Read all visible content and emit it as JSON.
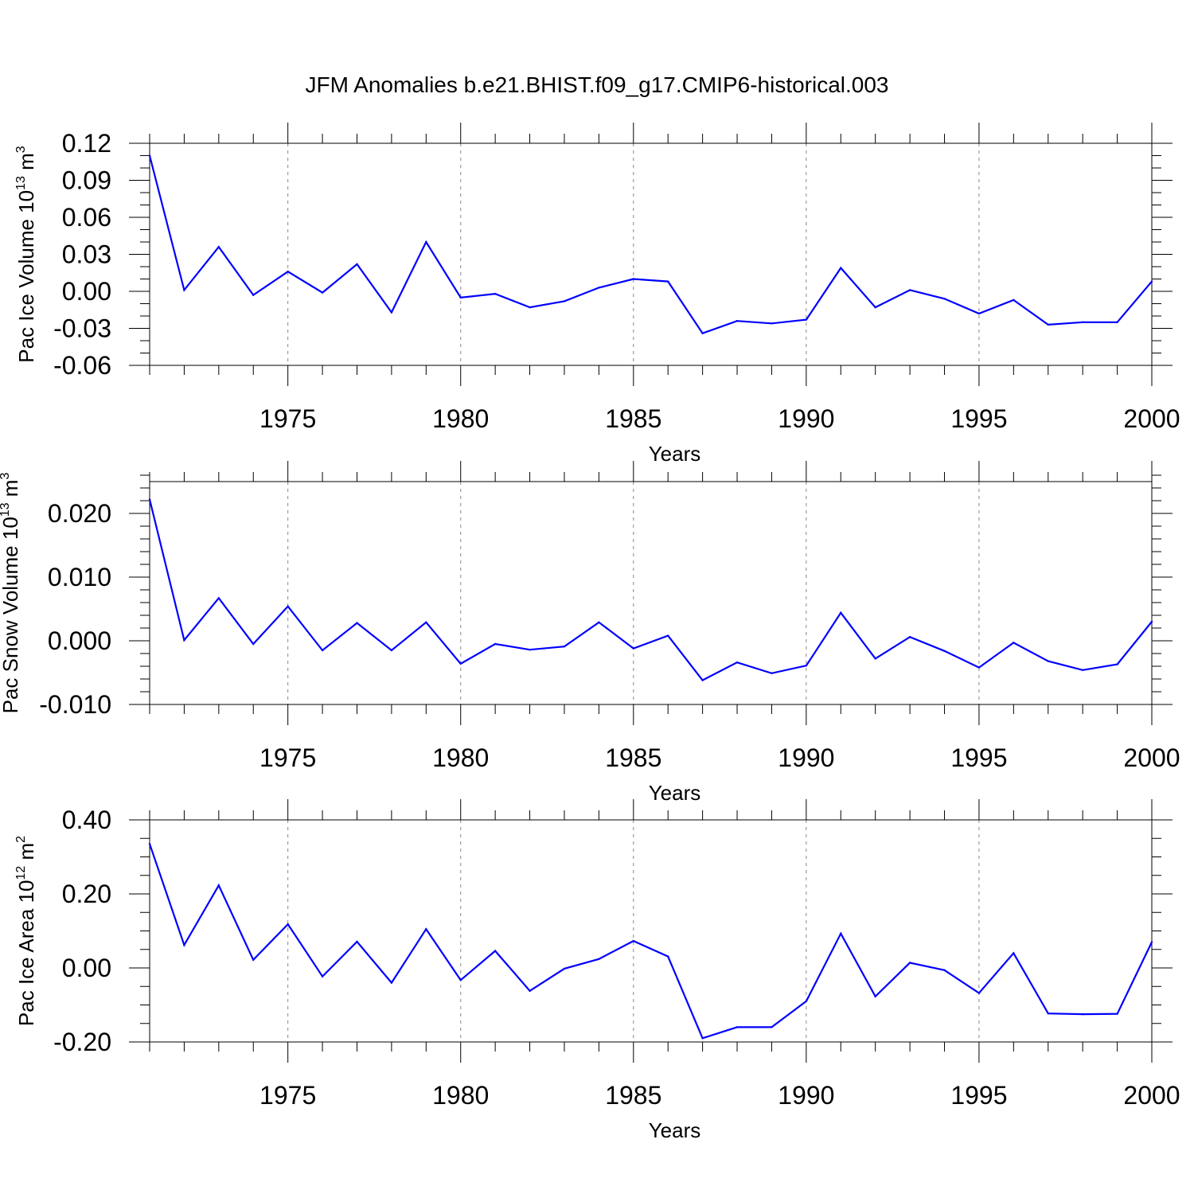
{
  "title": "JFM Anomalies b.e21.BHIST.f09_g17.CMIP6-historical.003",
  "series_color": "#0000ff",
  "chart_data": [
    {
      "type": "line",
      "ylabel_main": "Pac Ice Volume 10",
      "ylabel_exp": "13",
      "ylabel_unit": " m",
      "ylabel_unit_exp": "3",
      "xlabel": "Years",
      "xlim": [
        1971,
        2000
      ],
      "x_ticks": [
        1975,
        1980,
        1985,
        1990,
        1995,
        2000
      ],
      "ylim": [
        -0.06,
        0.12
      ],
      "y_ticks": [
        -0.06,
        -0.03,
        0.0,
        0.03,
        0.06,
        0.09,
        0.12
      ],
      "y_tick_labels": [
        "-0.06",
        "-0.03",
        "0.00",
        "0.03",
        "0.06",
        "0.09",
        "0.12"
      ],
      "y_minor_step": 0.01,
      "x": [
        1971,
        1972,
        1973,
        1974,
        1975,
        1976,
        1977,
        1978,
        1979,
        1980,
        1981,
        1982,
        1983,
        1984,
        1985,
        1986,
        1987,
        1988,
        1989,
        1990,
        1991,
        1992,
        1993,
        1994,
        1995,
        1996,
        1997,
        1998,
        1999,
        2000
      ],
      "values": [
        0.11,
        0.001,
        0.036,
        -0.003,
        0.016,
        -0.001,
        0.022,
        -0.017,
        0.04,
        -0.005,
        -0.002,
        -0.013,
        -0.008,
        0.003,
        0.01,
        0.008,
        -0.034,
        -0.024,
        -0.026,
        -0.023,
        0.019,
        -0.013,
        0.001,
        -0.006,
        -0.018,
        -0.007,
        -0.027,
        -0.025,
        -0.025,
        0.008
      ]
    },
    {
      "type": "line",
      "ylabel_main": "Pac Snow Volume 10",
      "ylabel_exp": "13",
      "ylabel_unit": " m",
      "ylabel_unit_exp": "3",
      "xlabel": "Years",
      "xlim": [
        1971,
        2000
      ],
      "x_ticks": [
        1975,
        1980,
        1985,
        1990,
        1995,
        2000
      ],
      "ylim": [
        -0.01,
        0.025
      ],
      "y_ticks": [
        -0.01,
        0.0,
        0.01,
        0.02
      ],
      "y_tick_labels": [
        "-0.010",
        "0.000",
        "0.010",
        "0.020"
      ],
      "y_minor_step": 0.002,
      "x": [
        1971,
        1972,
        1973,
        1974,
        1975,
        1976,
        1977,
        1978,
        1979,
        1980,
        1981,
        1982,
        1983,
        1984,
        1985,
        1986,
        1987,
        1988,
        1989,
        1990,
        1991,
        1992,
        1993,
        1994,
        1995,
        1996,
        1997,
        1998,
        1999,
        2000
      ],
      "values": [
        0.0222,
        0.0001,
        0.0067,
        -0.0005,
        0.0054,
        -0.0015,
        0.0028,
        -0.0015,
        0.0029,
        -0.0036,
        -0.0005,
        -0.0014,
        -0.0009,
        0.0029,
        -0.0012,
        0.0008,
        -0.0062,
        -0.0034,
        -0.0051,
        -0.0039,
        0.0044,
        -0.0028,
        0.0006,
        -0.0016,
        -0.0042,
        -0.0003,
        -0.0032,
        -0.0046,
        -0.0037,
        0.003
      ]
    },
    {
      "type": "line",
      "ylabel_main": "Pac Ice Area 10",
      "ylabel_exp": "12",
      "ylabel_unit": " m",
      "ylabel_unit_exp": "2",
      "xlabel": "Years",
      "xlim": [
        1971,
        2000
      ],
      "x_ticks": [
        1975,
        1980,
        1985,
        1990,
        1995,
        2000
      ],
      "ylim": [
        -0.2,
        0.4
      ],
      "y_ticks": [
        -0.2,
        0.0,
        0.2,
        0.4
      ],
      "y_tick_labels": [
        "-0.20",
        "0.00",
        "0.20",
        "0.40"
      ],
      "y_minor_step": 0.05,
      "x": [
        1971,
        1972,
        1973,
        1974,
        1975,
        1976,
        1977,
        1978,
        1979,
        1980,
        1981,
        1982,
        1983,
        1984,
        1985,
        1986,
        1987,
        1988,
        1989,
        1990,
        1991,
        1992,
        1993,
        1994,
        1995,
        1996,
        1997,
        1998,
        1999,
        2000
      ],
      "values": [
        0.335,
        0.062,
        0.223,
        0.022,
        0.118,
        -0.023,
        0.071,
        -0.04,
        0.105,
        -0.033,
        0.046,
        -0.062,
        -0.002,
        0.024,
        0.073,
        0.031,
        -0.19,
        -0.16,
        -0.16,
        -0.09,
        0.093,
        -0.077,
        0.014,
        -0.006,
        -0.068,
        0.04,
        -0.123,
        -0.125,
        -0.124,
        0.07
      ]
    }
  ]
}
